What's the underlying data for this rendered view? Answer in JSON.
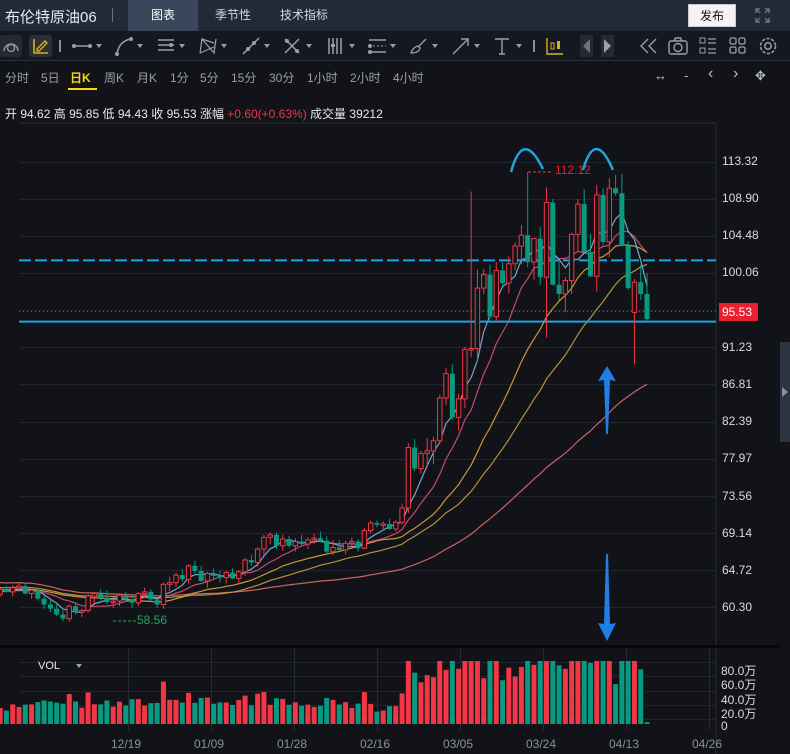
{
  "header": {
    "title": "布伦特原油06",
    "tabs": [
      {
        "label": "图表",
        "active": true
      },
      {
        "label": "季节性",
        "active": false
      },
      {
        "label": "技术指标",
        "active": false
      }
    ],
    "publish_label": "发布"
  },
  "toolbar": {
    "icons": [
      "magnet-icon",
      "pencil-icon",
      "horizontal-line-icon",
      "curve-icon",
      "parallel-lines-icon",
      "pattern-icon",
      "trend-line-icon",
      "cross-line-icon",
      "fib-icon",
      "gann-icon",
      "brush-icon",
      "arrow-icon",
      "text-icon",
      "candle-type-icon",
      "prev-icon",
      "next-icon",
      "rewind-icon",
      "camera-icon",
      "list-icon",
      "grid-icon",
      "settings-icon"
    ]
  },
  "periods": {
    "items": [
      "分时",
      "5日",
      "日K",
      "周K",
      "月K",
      "1分",
      "5分",
      "15分",
      "30分",
      "1小时",
      "2小时",
      "4小时"
    ],
    "active": "日K",
    "controls": [
      "↔",
      "-",
      "‹",
      "›",
      "✥"
    ]
  },
  "ohlc": {
    "open_label": "开",
    "open": "94.62",
    "high_label": "高",
    "high": "95.85",
    "low_label": "低",
    "low": "94.43",
    "close_label": "收",
    "close": "95.53",
    "change_label": "涨幅",
    "change": "+0.60(+0.63%)",
    "volume_label": "成交量",
    "volume": "39212"
  },
  "colors": {
    "up": "#f23645",
    "down": "#089981",
    "ma5": "#7fb8e0",
    "ma10": "#d94f7a",
    "ma20": "#d9a83a",
    "ma30": "#c9a040",
    "ma60": "#e06a6a",
    "hline": "#1fa4e6",
    "arrow": "#1e7fe6",
    "background": "#111318"
  },
  "chart_data": {
    "type": "candlestick",
    "title": "布伦特原油06 日K",
    "y_ticks": [
      "113.32",
      "108.90",
      "104.48",
      "100.06",
      "95.53",
      "91.23",
      "86.81",
      "82.39",
      "77.97",
      "73.56",
      "69.14",
      "64.72",
      "60.30"
    ],
    "x_ticks": [
      "12/19",
      "01/09",
      "01/28",
      "02/16",
      "03/05",
      "03/24",
      "04/13",
      "04/26"
    ],
    "last_price": "95.53",
    "annotations": {
      "high": "112.12",
      "low": "58.56"
    },
    "horizontal_lines": [
      {
        "value": 101.6,
        "style": "dashed"
      },
      {
        "value": 94.3,
        "style": "solid"
      }
    ],
    "volume": {
      "label": "VOL",
      "y_ticks": [
        "80.0万",
        "60.0万",
        "40.0万",
        "20.0万",
        "0"
      ]
    },
    "candles_ohlc": [
      [
        62.2,
        62.8,
        61.6,
        62.6
      ],
      [
        62.6,
        62.9,
        62.0,
        62.1
      ],
      [
        62.1,
        62.6,
        61.5,
        61.9
      ],
      [
        61.9,
        62.3,
        61.4,
        62.2
      ],
      [
        62.2,
        62.7,
        61.8,
        62.3
      ],
      [
        62.3,
        62.5,
        61.6,
        61.8
      ],
      [
        61.8,
        62.5,
        61.5,
        62.4
      ],
      [
        62.4,
        62.8,
        62.0,
        62.1
      ],
      [
        62.1,
        62.9,
        61.6,
        62.6
      ],
      [
        62.6,
        63.2,
        62.1,
        62.8
      ],
      [
        62.8,
        63.1,
        61.8,
        61.9
      ],
      [
        61.9,
        62.6,
        61.3,
        62.3
      ],
      [
        62.3,
        62.6,
        61.1,
        61.3
      ],
      [
        61.3,
        61.7,
        60.1,
        60.6
      ],
      [
        60.6,
        61.2,
        59.7,
        60.1
      ],
      [
        60.1,
        60.6,
        59.2,
        59.4
      ],
      [
        59.4,
        59.9,
        58.6,
        58.9
      ],
      [
        58.9,
        60.6,
        58.56,
        60.4
      ],
      [
        60.4,
        60.9,
        59.4,
        59.7
      ],
      [
        59.7,
        60.1,
        59.1,
        59.9
      ],
      [
        59.9,
        61.8,
        59.6,
        61.6
      ],
      [
        61.6,
        62.1,
        60.8,
        61.9
      ],
      [
        61.9,
        62.4,
        61.1,
        61.4
      ],
      [
        61.4,
        62.3,
        60.7,
        60.9
      ],
      [
        60.9,
        61.3,
        60.2,
        61.0
      ],
      [
        61.0,
        61.9,
        60.4,
        61.7
      ],
      [
        61.7,
        62.1,
        60.9,
        61.2
      ],
      [
        61.2,
        61.9,
        60.2,
        60.8
      ],
      [
        60.8,
        62.1,
        60.4,
        61.9
      ],
      [
        61.9,
        62.6,
        61.4,
        62.1
      ],
      [
        62.1,
        62.4,
        61.0,
        61.2
      ],
      [
        61.2,
        61.6,
        60.2,
        60.6
      ],
      [
        60.6,
        63.2,
        60.1,
        63.0
      ],
      [
        63.0,
        63.9,
        62.2,
        63.2
      ],
      [
        63.2,
        64.4,
        62.7,
        64.1
      ],
      [
        64.1,
        64.8,
        63.3,
        63.6
      ],
      [
        63.6,
        65.4,
        63.1,
        65.2
      ],
      [
        65.2,
        65.8,
        64.3,
        64.6
      ],
      [
        64.6,
        65.2,
        63.3,
        63.4
      ],
      [
        63.4,
        64.5,
        62.6,
        64.3
      ],
      [
        64.3,
        64.9,
        63.5,
        64.0
      ],
      [
        64.0,
        64.7,
        63.2,
        63.8
      ],
      [
        63.8,
        64.6,
        63.1,
        64.4
      ],
      [
        64.4,
        64.9,
        63.6,
        63.7
      ],
      [
        63.7,
        64.7,
        63.0,
        64.5
      ],
      [
        64.5,
        66.1,
        64.0,
        65.9
      ],
      [
        65.9,
        66.5,
        65.2,
        65.6
      ],
      [
        65.6,
        67.4,
        65.1,
        67.2
      ],
      [
        67.2,
        68.9,
        66.4,
        68.6
      ],
      [
        68.6,
        69.2,
        67.8,
        68.9
      ],
      [
        68.9,
        69.2,
        67.2,
        67.6
      ],
      [
        67.6,
        68.9,
        67.0,
        68.4
      ],
      [
        68.4,
        68.8,
        67.4,
        67.6
      ],
      [
        67.6,
        68.5,
        66.9,
        68.1
      ],
      [
        68.1,
        68.9,
        67.6,
        67.8
      ],
      [
        67.8,
        68.6,
        67.2,
        68.3
      ],
      [
        68.3,
        69.0,
        67.8,
        68.5
      ],
      [
        68.5,
        69.3,
        68.0,
        68.2
      ],
      [
        68.2,
        68.7,
        66.7,
        66.9
      ],
      [
        66.9,
        68.3,
        66.5,
        67.4
      ],
      [
        67.4,
        68.3,
        66.9,
        67.1
      ],
      [
        67.1,
        68.2,
        66.6,
        67.9
      ],
      [
        67.9,
        68.6,
        67.5,
        68.1
      ],
      [
        68.1,
        68.4,
        66.9,
        67.3
      ],
      [
        67.3,
        69.7,
        67.2,
        69.4
      ],
      [
        69.4,
        70.6,
        69.1,
        70.3
      ],
      [
        70.3,
        70.6,
        69.8,
        70.1
      ],
      [
        70.1,
        70.5,
        69.6,
        70.2
      ],
      [
        70.2,
        70.8,
        69.5,
        69.6
      ],
      [
        69.6,
        70.6,
        69.3,
        70.4
      ],
      [
        70.4,
        72.6,
        70.1,
        72.1
      ],
      [
        72.1,
        79.8,
        71.5,
        79.3
      ],
      [
        79.3,
        80.3,
        76.5,
        76.8
      ],
      [
        76.8,
        78.9,
        76.2,
        78.6
      ],
      [
        78.6,
        80.4,
        76.9,
        78.9
      ],
      [
        78.9,
        80.6,
        77.3,
        80.1
      ],
      [
        80.1,
        85.6,
        79.7,
        85.2
      ],
      [
        85.2,
        88.8,
        84.4,
        88.1
      ],
      [
        88.1,
        89.2,
        82.6,
        82.9
      ],
      [
        82.9,
        85.7,
        81.3,
        85.1
      ],
      [
        85.1,
        91.3,
        84.0,
        91.0
      ],
      [
        91.0,
        109.8,
        90.1,
        91.1
      ],
      [
        91.1,
        100.5,
        89.6,
        98.3
      ],
      [
        98.3,
        100.6,
        97.6,
        99.9
      ],
      [
        99.9,
        101.1,
        94.8,
        94.9
      ],
      [
        94.9,
        101.4,
        94.3,
        100.4
      ],
      [
        100.4,
        101.4,
        98.6,
        98.9
      ],
      [
        98.9,
        102.1,
        97.7,
        101.2
      ],
      [
        101.2,
        103.7,
        100.4,
        103.3
      ],
      [
        103.3,
        105.8,
        101.1,
        104.6
      ],
      [
        104.6,
        112.12,
        100.8,
        101.4
      ],
      [
        101.4,
        104.2,
        99.3,
        104.2
      ],
      [
        104.2,
        105.6,
        98.7,
        99.6
      ],
      [
        99.6,
        110.3,
        92.4,
        108.5
      ],
      [
        108.5,
        108.9,
        98.6,
        98.7
      ],
      [
        98.7,
        101.5,
        96.8,
        97.6
      ],
      [
        97.6,
        99.6,
        95.4,
        99.2
      ],
      [
        99.2,
        104.9,
        97.6,
        104.7
      ],
      [
        104.7,
        108.9,
        102.7,
        108.3
      ],
      [
        108.3,
        110.1,
        102.5,
        102.6
      ],
      [
        102.6,
        104.8,
        99.6,
        99.7
      ],
      [
        99.7,
        110.6,
        97.9,
        109.4
      ],
      [
        109.4,
        110.2,
        103.4,
        103.8
      ],
      [
        103.8,
        111.4,
        102.0,
        110.2
      ],
      [
        110.2,
        111.8,
        109.3,
        109.6
      ],
      [
        109.6,
        111.9,
        103.2,
        103.4
      ],
      [
        103.4,
        103.9,
        98.1,
        98.3
      ],
      [
        95.4,
        99.4,
        89.2,
        99.0
      ],
      [
        99.0,
        101.1,
        96.9,
        97.6
      ],
      [
        97.6,
        100.1,
        94.3,
        94.6
      ]
    ]
  }
}
